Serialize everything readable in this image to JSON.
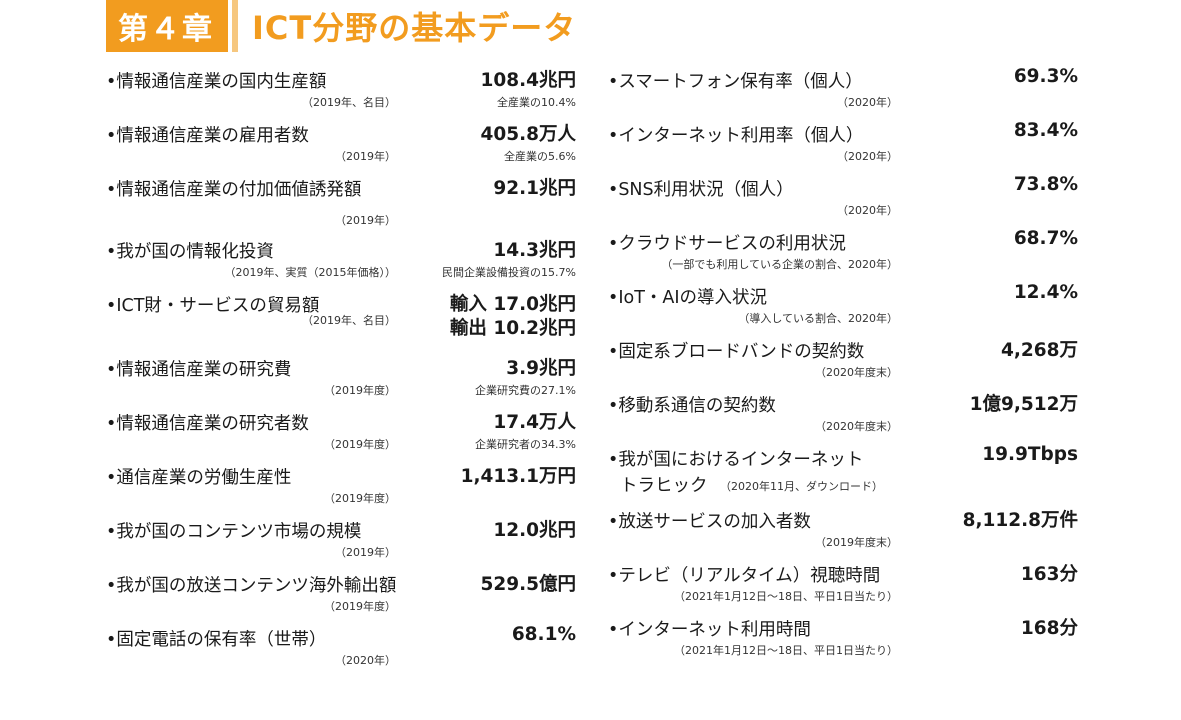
{
  "header": {
    "chapter": "第４章",
    "title": "ICT分野の基本データ"
  },
  "left": [
    {
      "label": "•情報通信産業の国内生産額",
      "value": "108.4兆円",
      "note": "（2019年、名目）",
      "subnote": "全産業の10.4%"
    },
    {
      "label": "•情報通信産業の雇用者数",
      "value": "405.8万人",
      "note": "（2019年）",
      "subnote": "全産業の5.6%"
    },
    {
      "label": "•情報通信産業の付加価値誘発額",
      "value": "92.1兆円",
      "note": "（2019年）",
      "subnote": ""
    },
    {
      "label": "•我が国の情報化投資",
      "value": "14.3兆円",
      "note": "（2019年、実質（2015年価格））",
      "subnote": "民間企業設備投資の15.7%"
    },
    {
      "label": "•ICT財・サービスの貿易額",
      "value": "輸入 17.0兆円",
      "value2": "輸出 10.2兆円",
      "note": "（2019年、名目）",
      "subnote": ""
    },
    {
      "label": "•情報通信産業の研究費",
      "value": "3.9兆円",
      "note": "（2019年度）",
      "subnote": "企業研究費の27.1%"
    },
    {
      "label": "•情報通信産業の研究者数",
      "value": "17.4万人",
      "note": "（2019年度）",
      "subnote": "企業研究者の34.3%"
    },
    {
      "label": "•通信産業の労働生産性",
      "value": "1,413.1万円",
      "note": "（2019年度）",
      "subnote": ""
    },
    {
      "label": "•我が国のコンテンツ市場の規模",
      "value": "12.0兆円",
      "note": "（2019年）",
      "subnote": ""
    },
    {
      "label": "•我が国の放送コンテンツ海外輸出額",
      "value": "529.5億円",
      "note": "（2019年度）",
      "subnote": ""
    },
    {
      "label": "•固定電話の保有率（世帯）",
      "value": "68.1%",
      "note": "（2020年）",
      "subnote": ""
    }
  ],
  "right": [
    {
      "label": "•スマートフォン保有率（個人）",
      "value": "69.3%",
      "note": "（2020年）"
    },
    {
      "label": "•インターネット利用率（個人）",
      "value": "83.4%",
      "note": "（2020年）"
    },
    {
      "label": "•SNS利用状況（個人）",
      "value": "73.8%",
      "note": "（2020年）"
    },
    {
      "label": "•クラウドサービスの利用状況",
      "value": "68.7%",
      "note": "（一部でも利用している企業の割合、2020年）"
    },
    {
      "label": "•IoT・AIの導入状況",
      "value": "12.4%",
      "note": "（導入している割合、2020年）"
    },
    {
      "label": "•固定系ブロードバンドの契約数",
      "value": "4,268万",
      "note": "（2020年度末）"
    },
    {
      "label": "•移動系通信の契約数",
      "value": "1億9,512万",
      "note": "（2020年度末）"
    },
    {
      "label": "•我が国におけるインターネット",
      "label2": "トラヒック",
      "value": "19.9Tbps",
      "note": "（2020年11月、ダウンロード）"
    },
    {
      "label": "•放送サービスの加入者数",
      "value": "8,112.8万件",
      "note": "（2019年度末）"
    },
    {
      "label": "•テレビ（リアルタイム）視聴時間",
      "value": "163分",
      "note": "（2021年1月12日～18日、平日1日当たり）"
    },
    {
      "label": "•インターネット利用時間",
      "value": "168分",
      "note": "（2021年1月12日～18日、平日1日当たり）"
    }
  ]
}
